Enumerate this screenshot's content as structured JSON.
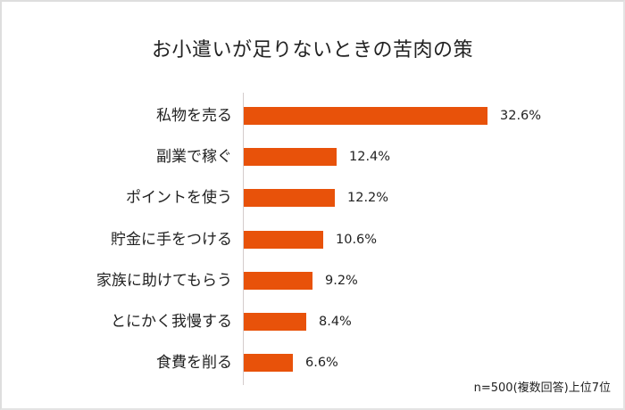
{
  "chart_data": {
    "type": "bar",
    "orientation": "horizontal",
    "title": "お小遣いが足りないときの苦肉の策",
    "categories": [
      "私物を売る",
      "副業で稼ぐ",
      "ポイントを使う",
      "貯金に手をつける",
      "家族に助けてもらう",
      "とにかく我慢する",
      "食費を削る"
    ],
    "values": [
      32.6,
      12.4,
      12.2,
      10.6,
      9.2,
      8.4,
      6.6
    ],
    "value_labels": [
      "32.6%",
      "12.4%",
      "12.2%",
      "10.6%",
      "9.2%",
      "8.4%",
      "6.6%"
    ],
    "unit": "%",
    "xlabel": "",
    "ylabel": "",
    "grid": false,
    "legend": null,
    "bar_color": "#e8520a",
    "annotation": "n=500(複数回答)上位7位"
  },
  "ui": {
    "title": "お小遣いが足りないときの苦肉の策",
    "note": "n=500(複数回答)上位7位"
  }
}
